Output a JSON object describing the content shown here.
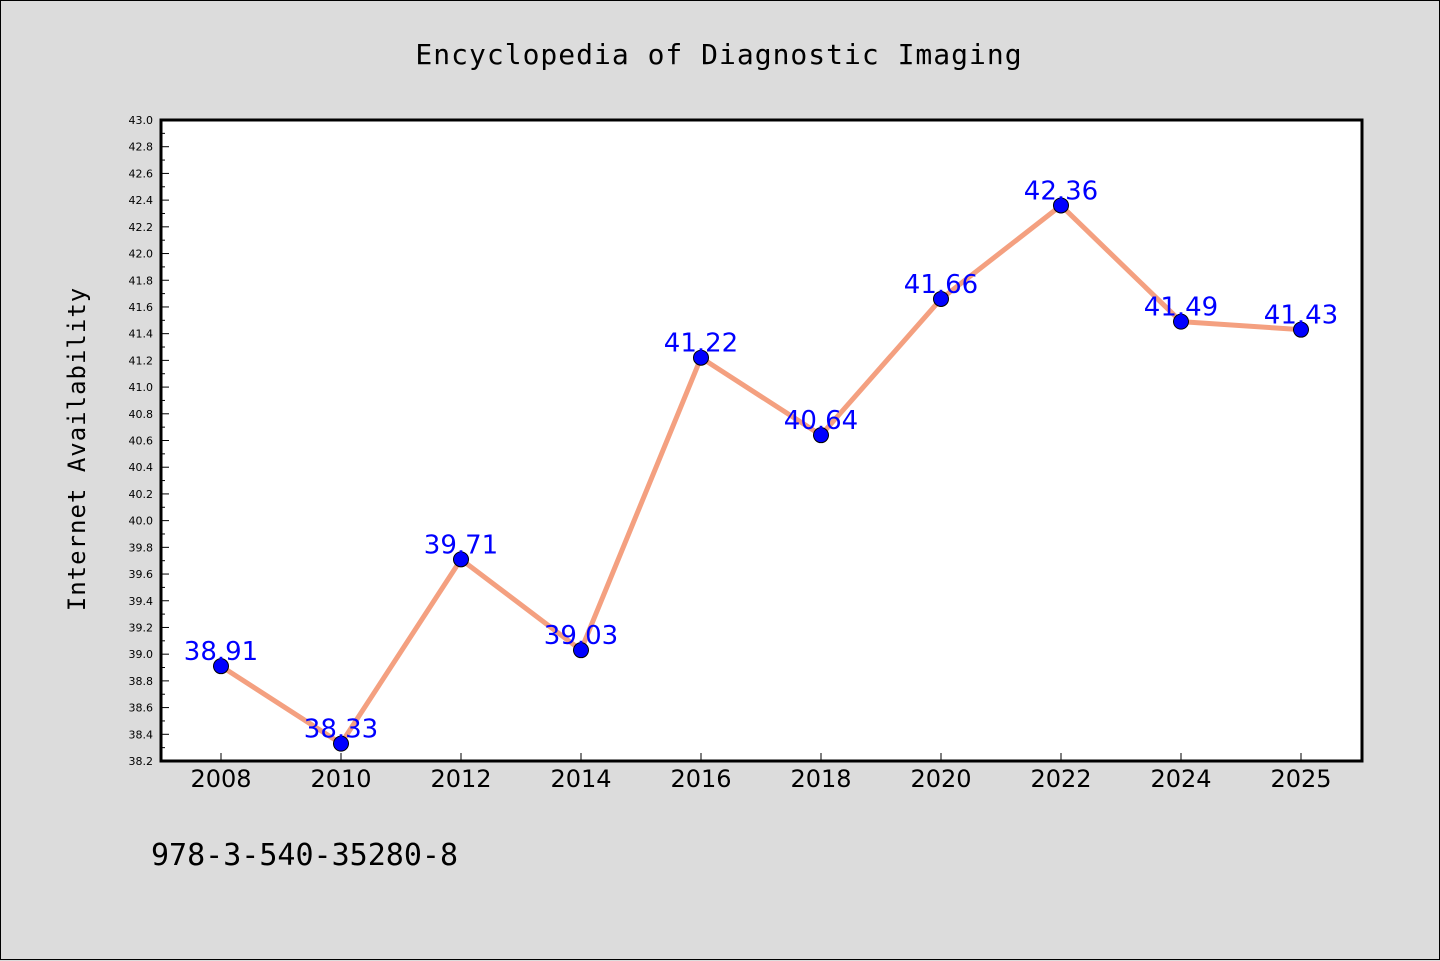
{
  "chart_data": {
    "type": "line",
    "title": "Encyclopedia of Diagnostic Imaging",
    "ylabel": "Internet Availability",
    "xlabel": "",
    "categories": [
      "2008",
      "2010",
      "2012",
      "2014",
      "2016",
      "2018",
      "2020",
      "2022",
      "2024",
      "2025"
    ],
    "series": [
      {
        "values": [
          38.91,
          38.33,
          39.71,
          39.03,
          41.22,
          40.64,
          41.66,
          42.36,
          41.49,
          41.43
        ],
        "labels": [
          "38.91",
          "38.33",
          "39.71",
          "39.03",
          "41.22",
          "40.64",
          "41.66",
          "42.36",
          "41.49",
          "41.43"
        ],
        "line_color": "#f4a080",
        "marker_color": "#0000ff"
      }
    ],
    "ylim": [
      38.2,
      43.0
    ],
    "yticks": [
      "38.2",
      "38.4",
      "38.6",
      "38.8",
      "39.0",
      "39.2",
      "39.4",
      "39.6",
      "39.8",
      "40.0",
      "40.2",
      "40.4",
      "40.6",
      "40.8",
      "41.0",
      "41.2",
      "41.4",
      "41.6",
      "41.8",
      "42.0",
      "42.2",
      "42.4",
      "42.6",
      "42.8",
      "43.0"
    ],
    "grid": false,
    "legend": "none"
  },
  "footnote": "978-3-540-35280-8",
  "colors": {
    "background": "#dcdcdc",
    "plot_background": "#ffffff",
    "data_label": "#0000ff"
  }
}
